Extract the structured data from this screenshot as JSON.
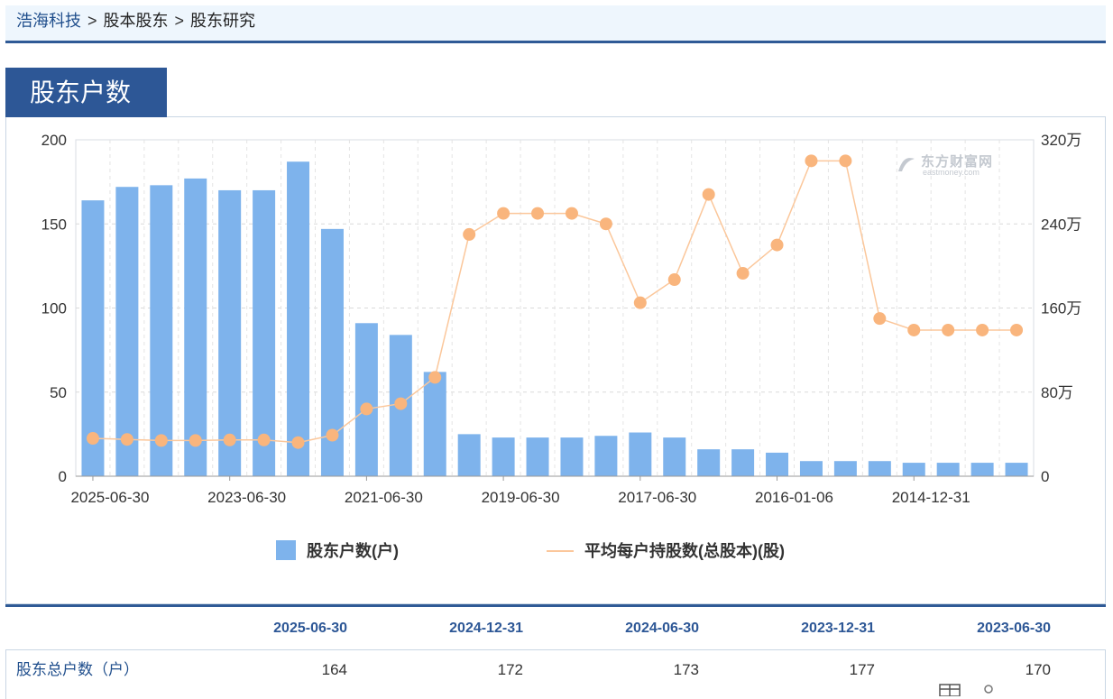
{
  "breadcrumb": {
    "home": "浩海科技",
    "sep": ">",
    "level2": "股本股东",
    "level3": "股东研究"
  },
  "section": {
    "title": "股东户数"
  },
  "watermark": {
    "cn": "东方财富网",
    "en": "eastmoney.com"
  },
  "colors": {
    "bar": "#7eb3ec",
    "line": "#fbc79b",
    "marker": "#f9b57d",
    "accent": "#2d5796"
  },
  "chart_data": {
    "type": "bar+line",
    "x_tick_labels": [
      "2025-06-30",
      "2023-06-30",
      "2021-06-30",
      "2019-06-30",
      "2017-06-30",
      "2016-01-06",
      "2014-12-31"
    ],
    "n_points": 28,
    "series": [
      {
        "name": "股东户数(户)",
        "type": "bar",
        "axis": "left",
        "values": [
          164,
          172,
          173,
          177,
          170,
          170,
          187,
          147,
          91,
          84,
          62,
          25,
          23,
          23,
          23,
          24,
          26,
          23,
          16,
          16,
          14,
          9,
          9,
          9,
          8,
          8,
          8,
          8
        ]
      },
      {
        "name": "平均每户持股数(总股本)(股)",
        "type": "line",
        "axis": "right",
        "values": [
          360000,
          350000,
          340000,
          340000,
          345000,
          345000,
          320000,
          390000,
          640000,
          690000,
          940000,
          2300000,
          2500000,
          2500000,
          2500000,
          2400000,
          1650000,
          1870000,
          2680000,
          1930000,
          2200000,
          3000000,
          3000000,
          1500000,
          1390000,
          1390000,
          1390000,
          1390000
        ]
      }
    ],
    "y_left": {
      "ticks": [
        "0",
        "50",
        "100",
        "150",
        "200"
      ],
      "range": [
        0,
        200
      ]
    },
    "y_right": {
      "ticks": [
        "0",
        "80万",
        "160万",
        "240万",
        "320万"
      ],
      "range": [
        0,
        3200000
      ]
    },
    "grid": "dashed"
  },
  "table": {
    "headers": [
      "2025-06-30",
      "2024-12-31",
      "2024-06-30",
      "2023-12-31",
      "2023-06-30"
    ],
    "row_label": "股东总户数（户）",
    "values": [
      "164",
      "172",
      "173",
      "177",
      "170"
    ]
  }
}
